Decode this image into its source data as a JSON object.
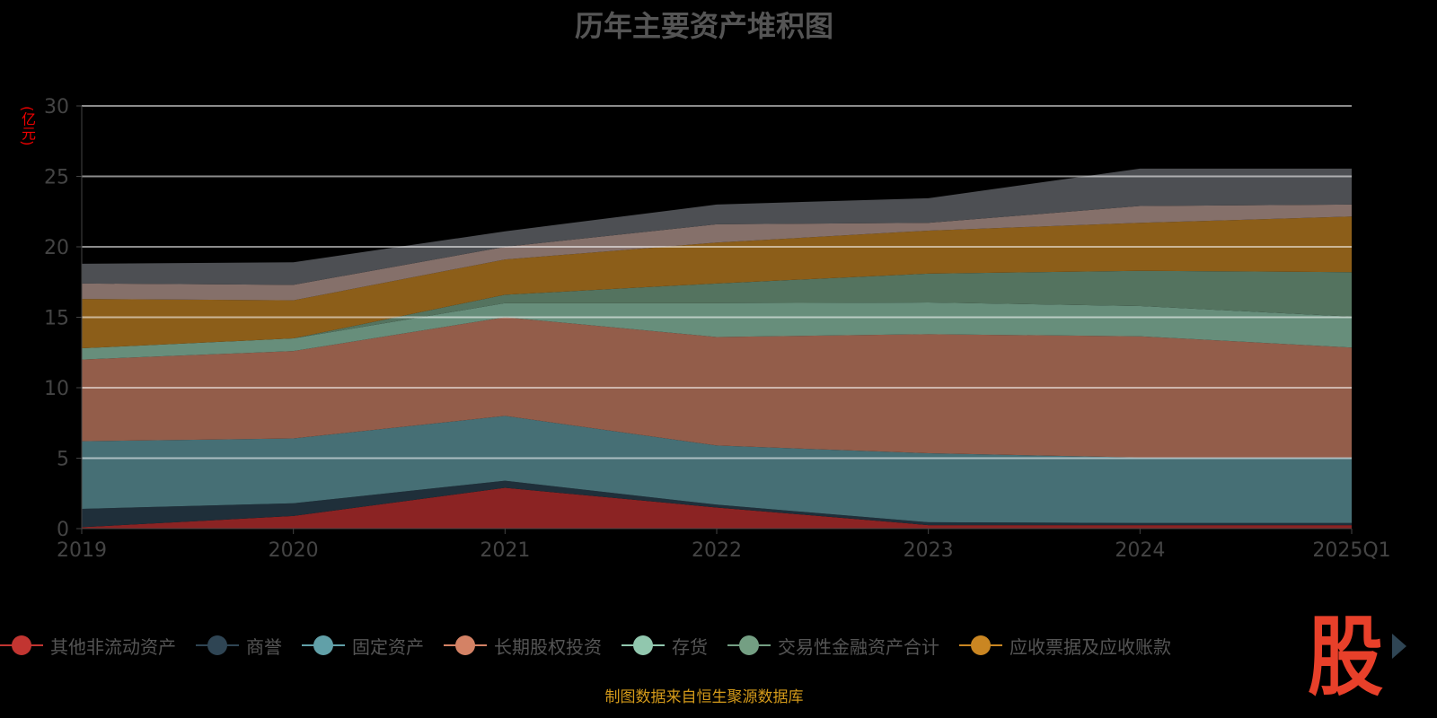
{
  "title": "历年主要资产堆积图",
  "source_note": "制图数据来自恒生聚源数据库",
  "logo_text": "股",
  "legend_next_icon": "triangle-right-icon",
  "chart_data": {
    "type": "area",
    "stacked": true,
    "title": "历年主要资产堆积图",
    "ylabel": "(亿元)",
    "xlabel": "",
    "ylim": [
      0,
      30
    ],
    "yticks": [
      "0",
      "5",
      "10",
      "15",
      "20",
      "25",
      "30"
    ],
    "categories": [
      "2019",
      "2020",
      "2021",
      "2022",
      "2023",
      "2024",
      "2025Q1"
    ],
    "grid": true,
    "legend_placement": "bottom",
    "series": [
      {
        "name": "其他非流动资产",
        "color": "#c23531",
        "fill": "#8b2323",
        "values": [
          0.1,
          0.9,
          2.9,
          1.5,
          0.25,
          0.25,
          0.25
        ]
      },
      {
        "name": "商誉",
        "color": "#2f4554",
        "fill": "#1f2f3a",
        "values": [
          1.3,
          0.9,
          0.5,
          0.2,
          0.2,
          0.15,
          0.15
        ]
      },
      {
        "name": "固定资产",
        "color": "#61a0a8",
        "fill": "#466f75",
        "values": [
          4.8,
          4.6,
          4.6,
          4.2,
          4.9,
          4.65,
          4.65
        ]
      },
      {
        "name": "长期股权投资",
        "color": "#d48265",
        "fill": "#935d4a",
        "values": [
          5.8,
          6.2,
          7.0,
          7.7,
          8.45,
          8.6,
          7.8
        ]
      },
      {
        "name": "存货",
        "color": "#91c7ae",
        "fill": "#678e7b",
        "values": [
          0.8,
          0.9,
          1.0,
          2.4,
          2.25,
          2.15,
          2.2
        ]
      },
      {
        "name": "交易性金融资产合计",
        "color": "#749f83",
        "fill": "#54735f",
        "values": [
          0,
          0,
          0.6,
          1.4,
          2.05,
          2.5,
          3.15
        ]
      },
      {
        "name": "应收票据及应收账款",
        "color": "#ca8622",
        "fill": "#8c5e19",
        "values": [
          3.5,
          2.7,
          2.5,
          2.9,
          3.05,
          3.4,
          3.95
        ]
      },
      {
        "color": "#bda29a",
        "fill": "#85706a",
        "values": [
          1.1,
          1.1,
          0.9,
          1.3,
          0.55,
          1.2,
          0.85
        ]
      },
      {
        "color": "#6e7074",
        "fill": "#4d4f53",
        "values": [
          1.4,
          1.6,
          1.1,
          1.4,
          1.75,
          2.65,
          2.55
        ]
      }
    ]
  }
}
